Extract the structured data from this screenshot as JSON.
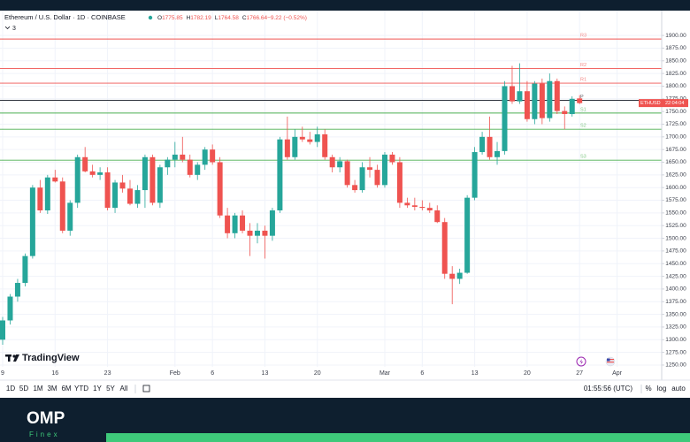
{
  "chart_data": {
    "type": "candlestick",
    "title": "Ethereum / U.S. Dollar · 1D · COINBASE",
    "header_values": [
      {
        "k": "O",
        "v": "1775.85"
      },
      {
        "k": "H",
        "v": "1782.19"
      },
      {
        "k": "L",
        "v": "1764.58"
      },
      {
        "k": "C",
        "v": "1766.64"
      },
      {
        "k": "",
        "v": "−9.22 (−0.52%)"
      }
    ],
    "indicator_count": "3",
    "symbol_tag": "ETHUSD",
    "clock_tag": "22:04:04",
    "up_color": "#26a69a",
    "down_color": "#ef5350",
    "grid": true,
    "ylim": [
      1229,
      1949
    ],
    "yticks": [
      {
        "value": 1250,
        "label": "1250.00"
      },
      {
        "value": 1275,
        "label": "1275.00"
      },
      {
        "value": 1300,
        "label": "1300.00"
      },
      {
        "value": 1325,
        "label": "1325.00"
      },
      {
        "value": 1350,
        "label": "1350.00"
      },
      {
        "value": 1375,
        "label": "1375.00"
      },
      {
        "value": 1400,
        "label": "1400.00"
      },
      {
        "value": 1425,
        "label": "1425.00"
      },
      {
        "value": 1450,
        "label": "1450.00"
      },
      {
        "value": 1475,
        "label": "1475.00"
      },
      {
        "value": 1500,
        "label": "1500.00"
      },
      {
        "value": 1525,
        "label": "1525.00"
      },
      {
        "value": 1550,
        "label": "1550.00"
      },
      {
        "value": 1575,
        "label": "1575.00"
      },
      {
        "value": 1600,
        "label": "1600.00"
      },
      {
        "value": 1625,
        "label": "1625.00"
      },
      {
        "value": 1650,
        "label": "1650.00"
      },
      {
        "value": 1675,
        "label": "1675.00"
      },
      {
        "value": 1700,
        "label": "1700.00"
      },
      {
        "value": 1725,
        "label": "1725.00"
      },
      {
        "value": 1750,
        "label": "1750.00"
      },
      {
        "value": 1775,
        "label": "1775.00"
      },
      {
        "value": 1800,
        "label": "1800.00"
      },
      {
        "value": 1825,
        "label": "1825.00"
      },
      {
        "value": 1850,
        "label": "1850.00"
      },
      {
        "value": 1875,
        "label": "1875.00"
      },
      {
        "value": 1900,
        "label": "1900.00"
      }
    ],
    "levels": [
      {
        "label": "R3",
        "value": 1893,
        "color": "#ef5350"
      },
      {
        "label": "R2",
        "value": 1835,
        "color": "#ef5350"
      },
      {
        "label": "R1",
        "value": 1806,
        "color": "#ef5350"
      },
      {
        "label": "P",
        "value": 1772,
        "color": "#131722"
      },
      {
        "label": "S1",
        "value": 1747,
        "color": "#4caf50"
      },
      {
        "label": "S2",
        "value": 1715,
        "color": "#4caf50"
      },
      {
        "label": "S3",
        "value": 1654,
        "color": "#4caf50"
      }
    ],
    "categories": [
      "9",
      null,
      null,
      null,
      null,
      null,
      null,
      "16",
      null,
      null,
      null,
      null,
      null,
      null,
      "23",
      null,
      null,
      null,
      null,
      null,
      null,
      null,
      null,
      "Feb",
      null,
      null,
      null,
      null,
      "6",
      null,
      null,
      null,
      null,
      null,
      null,
      "13",
      null,
      null,
      null,
      null,
      null,
      null,
      "20",
      null,
      null,
      null,
      null,
      null,
      null,
      null,
      null,
      "Mar",
      null,
      null,
      null,
      null,
      "6",
      null,
      null,
      null,
      null,
      null,
      null,
      "13",
      null,
      null,
      null,
      null,
      null,
      null,
      "20",
      null,
      null,
      null,
      null,
      null,
      null,
      "27",
      null,
      null,
      null,
      null,
      "Apr"
    ],
    "open": [
      1300,
      1338,
      1385,
      1412,
      1465,
      1600,
      1555,
      1620,
      1612,
      1515,
      1570,
      1660,
      1632,
      1625,
      1630,
      1560,
      1610,
      1598,
      1568,
      1595,
      1660,
      1570,
      1640,
      1655,
      1665,
      1655,
      1625,
      1645,
      1675,
      1650,
      1545,
      1510,
      1545,
      1515,
      1505,
      1515,
      1505,
      1555,
      1695,
      1660,
      1700,
      1695,
      1690,
      1705,
      1660,
      1640,
      1652,
      1605,
      1595,
      1640,
      1635,
      1605,
      1665,
      1650,
      1570,
      1565,
      1562,
      1560,
      1555,
      1532,
      1430,
      1420,
      1432,
      1580,
      1670,
      1700,
      1660,
      1672,
      1800,
      1770,
      1790,
      1735,
      1805,
      1737,
      1810,
      1751,
      1745,
      1775.85,
      null,
      null,
      null,
      null,
      null
    ],
    "high": [
      1345,
      1390,
      1420,
      1470,
      1605,
      1615,
      1625,
      1635,
      1620,
      1575,
      1665,
      1680,
      1645,
      1640,
      1640,
      1615,
      1625,
      1615,
      1605,
      1665,
      1665,
      1645,
      1660,
      1690,
      1700,
      1665,
      1650,
      1680,
      1685,
      1660,
      1560,
      1550,
      1555,
      1530,
      1530,
      1525,
      1560,
      1700,
      1740,
      1715,
      1720,
      1710,
      1720,
      1715,
      1665,
      1660,
      1655,
      1615,
      1650,
      1660,
      1645,
      1670,
      1670,
      1660,
      1580,
      1580,
      1575,
      1570,
      1565,
      1540,
      1445,
      1440,
      1585,
      1680,
      1710,
      1740,
      1690,
      1810,
      1840,
      1845,
      1810,
      1810,
      1815,
      1825,
      1815,
      1760,
      1780,
      1782.19,
      null,
      null,
      null,
      null,
      null
    ],
    "low": [
      1290,
      1330,
      1375,
      1405,
      1460,
      1550,
      1548,
      1610,
      1510,
      1505,
      1560,
      1630,
      1620,
      1615,
      1555,
      1550,
      1590,
      1565,
      1560,
      1560,
      1565,
      1560,
      1625,
      1640,
      1650,
      1620,
      1615,
      1635,
      1645,
      1540,
      1500,
      1500,
      1510,
      1465,
      1490,
      1460,
      1495,
      1550,
      1655,
      1655,
      1690,
      1685,
      1680,
      1655,
      1630,
      1630,
      1600,
      1590,
      1590,
      1620,
      1600,
      1600,
      1645,
      1560,
      1560,
      1555,
      1555,
      1550,
      1530,
      1420,
      1370,
      1410,
      1430,
      1575,
      1665,
      1655,
      1645,
      1665,
      1765,
      1765,
      1730,
      1725,
      1725,
      1730,
      1745,
      1715,
      1740,
      1764.58,
      null,
      null,
      null,
      null,
      null
    ],
    "close": [
      1338,
      1385,
      1412,
      1465,
      1600,
      1555,
      1620,
      1612,
      1515,
      1570,
      1660,
      1632,
      1625,
      1630,
      1560,
      1610,
      1598,
      1568,
      1595,
      1660,
      1570,
      1640,
      1655,
      1665,
      1655,
      1625,
      1645,
      1675,
      1650,
      1545,
      1510,
      1545,
      1515,
      1505,
      1515,
      1505,
      1555,
      1695,
      1660,
      1700,
      1695,
      1690,
      1705,
      1660,
      1640,
      1652,
      1605,
      1595,
      1640,
      1635,
      1605,
      1665,
      1650,
      1570,
      1565,
      1562,
      1560,
      1555,
      1532,
      1430,
      1420,
      1432,
      1580,
      1670,
      1700,
      1660,
      1672,
      1800,
      1770,
      1790,
      1735,
      1805,
      1737,
      1810,
      1751,
      1745,
      1775,
      1766.64,
      null,
      null,
      null,
      null,
      null
    ]
  },
  "toolbar": {
    "ranges": [
      "1D",
      "5D",
      "1M",
      "3M",
      "6M",
      "YTD",
      "1Y",
      "5Y",
      "All"
    ],
    "time": "01:55:56 (UTC)",
    "options": [
      "%",
      "log",
      "auto"
    ]
  },
  "watermark": "TradingView",
  "brand": {
    "name": "OMP",
    "sub": "Finex"
  }
}
